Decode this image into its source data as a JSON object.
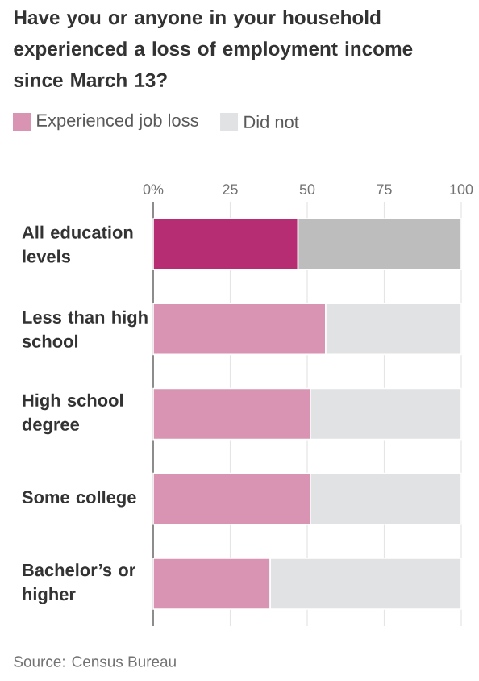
{
  "chart_data": {
    "type": "bar",
    "orientation": "horizontal",
    "stacked": true,
    "title": "Have you or anyone in your household experienced a loss of employment income since March 13?",
    "categories": [
      "All education levels",
      "Less than high school",
      "High school degree",
      "Some college",
      "Bachelor’s or higher"
    ],
    "series": [
      {
        "name": "Experienced job loss",
        "color": "#d993b3",
        "colors": [
          "#b72d74",
          "#d993b3",
          "#d993b3",
          "#d993b3",
          "#d993b3"
        ],
        "values": [
          47,
          56,
          51,
          51,
          38
        ]
      },
      {
        "name": "Did not",
        "color": "#e1e2e3",
        "colors": [
          "#bdbdbd",
          "#e1e2e3",
          "#e1e2e3",
          "#e1e2e3",
          "#e1e2e3"
        ],
        "values": [
          53,
          44,
          49,
          49,
          62
        ]
      }
    ],
    "xlim": [
      0,
      100
    ],
    "xticks": [
      {
        "value": 0,
        "label": "0%"
      },
      25,
      50,
      75,
      100
    ],
    "grid": "x",
    "legend": "top left",
    "annotations": [
      "Source: Census Bureau"
    ]
  }
}
